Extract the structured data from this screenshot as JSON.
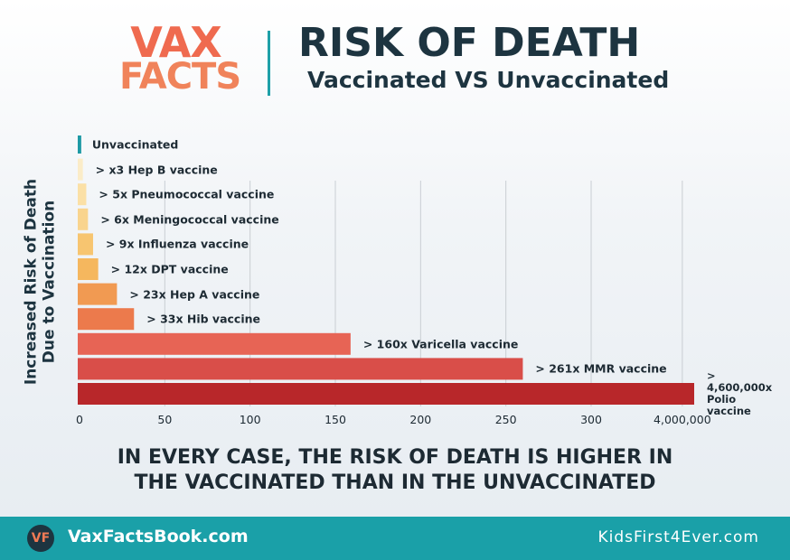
{
  "logo": {
    "line1": "VAX",
    "line2": "FACTS",
    "icon": "VF"
  },
  "header": {
    "title": "RISK OF DEATH",
    "subtitle": "Vaccinated VS Unvaccinated"
  },
  "chart_data": {
    "type": "bar",
    "orientation": "horizontal",
    "ylabel": "Increased Risk of Death Due to Vaccination",
    "categories": [
      "Unvaccinated",
      "> x3 Hep B vaccine",
      "> 5x Pneumococcal vaccine",
      "> 6x Meningococcal vaccine",
      "> 9x Influenza vaccine",
      "> 12x DPT vaccine",
      "> 23x Hep A vaccine",
      "> 33x Hib vaccine",
      "> 160x Varicella vaccine",
      "> 261x MMR vaccine",
      "> 4,600,000x Polio vaccine"
    ],
    "values": [
      1,
      3,
      5,
      6,
      9,
      12,
      23,
      33,
      160,
      261,
      4600000
    ],
    "colors": [
      "#1e9aa5",
      "#fbecc8",
      "#fbe0a6",
      "#f9d48e",
      "#f7c570",
      "#f5b75e",
      "#f19a52",
      "#ec7a4c",
      "#e76455",
      "#d94e49",
      "#b8272a"
    ],
    "xlim": [
      0,
      4600000
    ],
    "xticks": [
      0,
      50,
      100,
      150,
      200,
      250,
      300,
      {
        "value": 4000000,
        "label": "4,000,000"
      }
    ],
    "grid": true
  },
  "conclusion": [
    "IN EVERY CASE, THE RISK OF DEATH IS HIGHER IN",
    "THE VACCINATED THAN IN THE UNVACCINATED"
  ],
  "footer": {
    "left": "VaxFactsBook.com",
    "right": "KidsFirst4Ever.com"
  }
}
